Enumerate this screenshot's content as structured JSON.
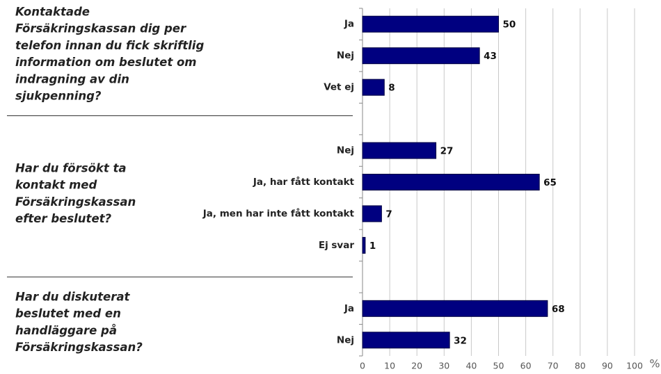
{
  "chart_data": {
    "type": "bar",
    "orientation": "horizontal",
    "groups": [
      {
        "lines": [
          "Kontaktade",
          "Försäkringskassan dig per",
          "telefon innan du fick skriftlig",
          "information om beslutet om",
          "indragning av din",
          "sjukpenning?"
        ]
      },
      {
        "lines": [
          "Har du försökt ta",
          "kontakt med",
          "Försäkringskassan",
          "efter beslutet?"
        ]
      },
      {
        "lines": [
          "Har du diskuterat",
          "beslutet med en",
          "handläggare på",
          "Försäkringskassan?"
        ]
      }
    ],
    "categories": [
      "Ja",
      "Nej",
      "Vet ej",
      null,
      "Nej",
      "Ja, har fått kontakt",
      "Ja, men har inte fått kontakt",
      "Ej svar",
      null,
      "Ja",
      "Nej"
    ],
    "values": [
      50,
      43,
      8,
      null,
      27,
      65,
      7,
      1,
      null,
      68,
      32
    ],
    "color": "#000080",
    "xlim": [
      0,
      100
    ],
    "xticks": [
      0,
      10,
      20,
      30,
      40,
      50,
      60,
      70,
      80,
      90,
      100
    ],
    "unit": "%",
    "grid": true
  }
}
